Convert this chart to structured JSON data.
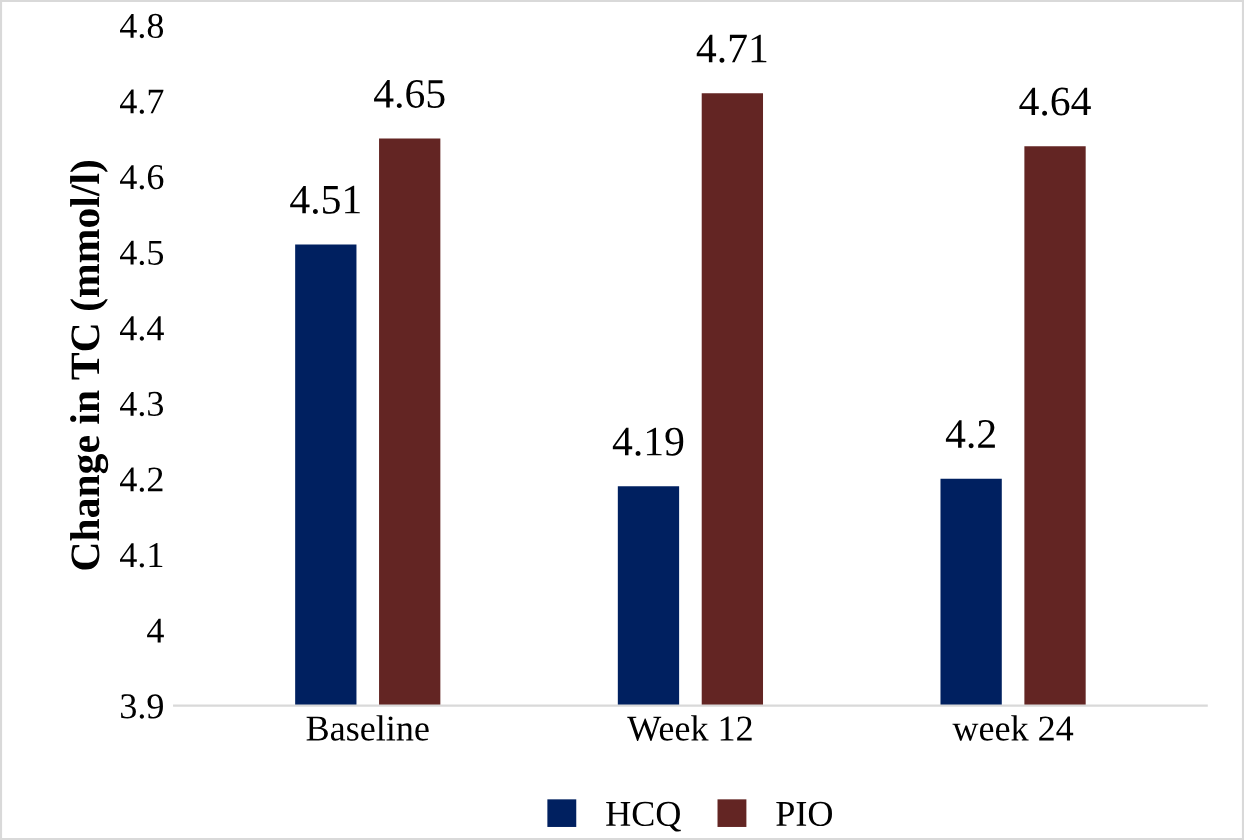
{
  "chart_data": {
    "type": "bar",
    "ylabel": "Change in TC (mmol/l)",
    "categories": [
      "Baseline",
      "Week 12",
      "week 24"
    ],
    "series": [
      {
        "name": "HCQ",
        "color": "#002060",
        "values": [
          4.51,
          4.19,
          4.2
        ]
      },
      {
        "name": "PIO",
        "color": "#632523",
        "values": [
          4.65,
          4.71,
          4.64
        ]
      }
    ],
    "ylim": [
      3.9,
      4.8
    ],
    "yticks": [
      3.9,
      4,
      4.1,
      4.2,
      4.3,
      4.4,
      4.5,
      4.6,
      4.7,
      4.8
    ],
    "grid": false,
    "legend": "bottom",
    "data_labels": true
  }
}
